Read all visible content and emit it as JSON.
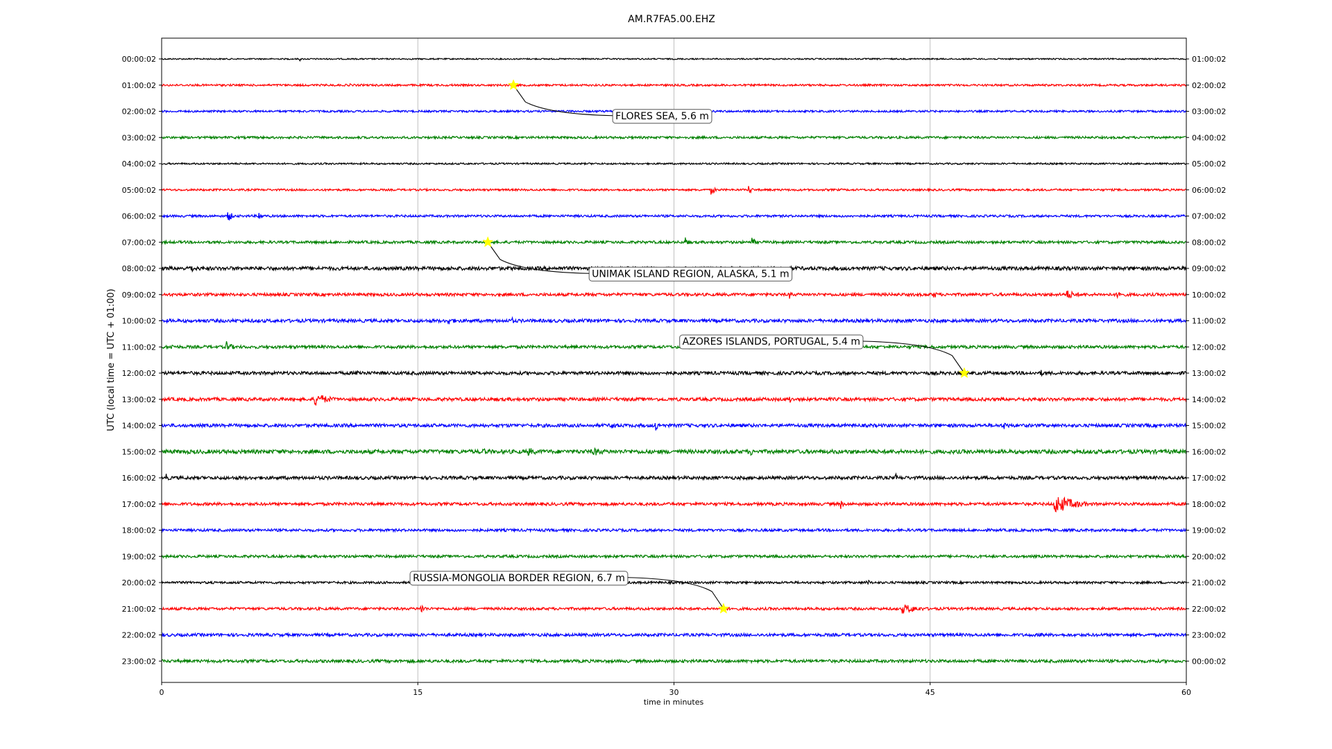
{
  "chart_data": {
    "type": "line",
    "title": "AM.R7FA5.00.EHZ",
    "xlabel": "time in minutes",
    "ylabel": "UTC (local time = UTC + 01:00)",
    "xlim": [
      0,
      60
    ],
    "x_ticks": [
      0,
      15,
      30,
      45,
      60
    ],
    "grid": "vertical lines at each x tick",
    "trace_colors": [
      "#000000",
      "#ff0000",
      "#0000ff",
      "#008000"
    ],
    "left_labels": [
      "00:00:02",
      "01:00:02",
      "02:00:02",
      "03:00:02",
      "04:00:02",
      "05:00:02",
      "06:00:02",
      "07:00:02",
      "08:00:02",
      "09:00:02",
      "10:00:02",
      "11:00:02",
      "12:00:02",
      "13:00:02",
      "14:00:02",
      "15:00:02",
      "16:00:02",
      "17:00:02",
      "18:00:02",
      "19:00:02",
      "20:00:02",
      "21:00:02",
      "22:00:02",
      "23:00:02"
    ],
    "right_labels": [
      "01:00:02",
      "02:00:02",
      "03:00:02",
      "04:00:02",
      "05:00:02",
      "06:00:02",
      "07:00:02",
      "08:00:02",
      "09:00:02",
      "10:00:02",
      "11:00:02",
      "12:00:02",
      "13:00:02",
      "14:00:02",
      "15:00:02",
      "16:00:02",
      "17:00:02",
      "18:00:02",
      "19:00:02",
      "20:00:02",
      "21:00:02",
      "22:00:02",
      "23:00:02",
      "00:00:02"
    ],
    "trace_noise": [
      0.08,
      0.12,
      0.12,
      0.14,
      0.1,
      0.12,
      0.14,
      0.16,
      0.22,
      0.18,
      0.2,
      0.18,
      0.2,
      0.2,
      0.2,
      0.24,
      0.2,
      0.18,
      0.16,
      0.16,
      0.14,
      0.16,
      0.18,
      0.18
    ],
    "bursts": [
      {
        "row": 0,
        "minute": 8.1,
        "amp": 0.25,
        "duration": 0.2
      },
      {
        "row": 1,
        "minute": 11.0,
        "amp": 0.3,
        "duration": 0.3
      },
      {
        "row": 5,
        "minute": 32.2,
        "amp": 0.6,
        "duration": 0.5
      },
      {
        "row": 5,
        "minute": 34.4,
        "amp": 0.6,
        "duration": 0.4
      },
      {
        "row": 6,
        "minute": 3.9,
        "amp": 0.7,
        "duration": 0.6
      },
      {
        "row": 6,
        "minute": 5.7,
        "amp": 0.6,
        "duration": 0.4
      },
      {
        "row": 7,
        "minute": 30.7,
        "amp": 0.7,
        "duration": 0.3
      },
      {
        "row": 7,
        "minute": 34.6,
        "amp": 0.6,
        "duration": 0.4
      },
      {
        "row": 8,
        "minute": 1.6,
        "amp": 0.6,
        "duration": 1.0
      },
      {
        "row": 9,
        "minute": 36.8,
        "amp": 0.5,
        "duration": 0.4
      },
      {
        "row": 9,
        "minute": 45.2,
        "amp": 0.5,
        "duration": 0.6
      },
      {
        "row": 9,
        "minute": 53.0,
        "amp": 0.6,
        "duration": 1.5
      },
      {
        "row": 9,
        "minute": 56.0,
        "amp": 0.8,
        "duration": 0.5
      },
      {
        "row": 10,
        "minute": 16.8,
        "amp": 0.5,
        "duration": 1.0
      },
      {
        "row": 10,
        "minute": 20.5,
        "amp": 0.5,
        "duration": 0.4
      },
      {
        "row": 11,
        "minute": 3.8,
        "amp": 0.7,
        "duration": 0.8
      },
      {
        "row": 11,
        "minute": 0.6,
        "amp": 0.4,
        "duration": 0.5
      },
      {
        "row": 12,
        "minute": 11.5,
        "amp": 0.4,
        "duration": 1.5
      },
      {
        "row": 12,
        "minute": 51.5,
        "amp": 0.4,
        "duration": 0.5
      },
      {
        "row": 13,
        "minute": 9.0,
        "amp": 0.8,
        "duration": 2.0
      },
      {
        "row": 13,
        "minute": 36.8,
        "amp": 0.5,
        "duration": 0.3
      },
      {
        "row": 14,
        "minute": 26.4,
        "amp": 0.8,
        "duration": 0.4
      },
      {
        "row": 14,
        "minute": 28.9,
        "amp": 0.8,
        "duration": 0.5
      },
      {
        "row": 14,
        "minute": 49.3,
        "amp": 0.5,
        "duration": 1.0
      },
      {
        "row": 15,
        "minute": 18.8,
        "amp": 0.4,
        "duration": 2.0
      },
      {
        "row": 15,
        "minute": 21.5,
        "amp": 0.5,
        "duration": 1.5
      },
      {
        "row": 15,
        "minute": 25.3,
        "amp": 0.5,
        "duration": 2.0
      },
      {
        "row": 15,
        "minute": 34.5,
        "amp": 0.6,
        "duration": 0.3
      },
      {
        "row": 16,
        "minute": 0.3,
        "amp": 0.5,
        "duration": 0.4
      },
      {
        "row": 16,
        "minute": 43.0,
        "amp": 0.5,
        "duration": 0.3
      },
      {
        "row": 17,
        "minute": 39.8,
        "amp": 0.8,
        "duration": 0.2
      },
      {
        "row": 17,
        "minute": 52.3,
        "amp": 1.3,
        "duration": 2.5
      },
      {
        "row": 20,
        "minute": 41.3,
        "amp": 0.4,
        "duration": 0.6
      },
      {
        "row": 21,
        "minute": 15.2,
        "amp": 0.6,
        "duration": 0.6
      },
      {
        "row": 21,
        "minute": 43.4,
        "amp": 0.6,
        "duration": 2.5
      },
      {
        "row": 22,
        "minute": 51.5,
        "amp": 0.4,
        "duration": 0.5
      },
      {
        "row": 23,
        "minute": 14.5,
        "amp": 0.3,
        "duration": 1.0
      }
    ],
    "events": [
      {
        "label": "FLORES SEA, 5.6 m",
        "row": 1,
        "minute": 20.6
      },
      {
        "label": "UNIMAK ISLAND REGION, ALASKA, 5.1 m",
        "row": 7,
        "minute": 19.1
      },
      {
        "label": "AZORES ISLANDS, PORTUGAL, 5.4 m",
        "row": 12,
        "minute": 47.0
      },
      {
        "label": "RUSSIA-MONGOLIA BORDER REGION, 6.7 m",
        "row": 21,
        "minute": 32.9
      }
    ],
    "event_marker": {
      "shape": "star",
      "color": "#ffff00"
    }
  }
}
